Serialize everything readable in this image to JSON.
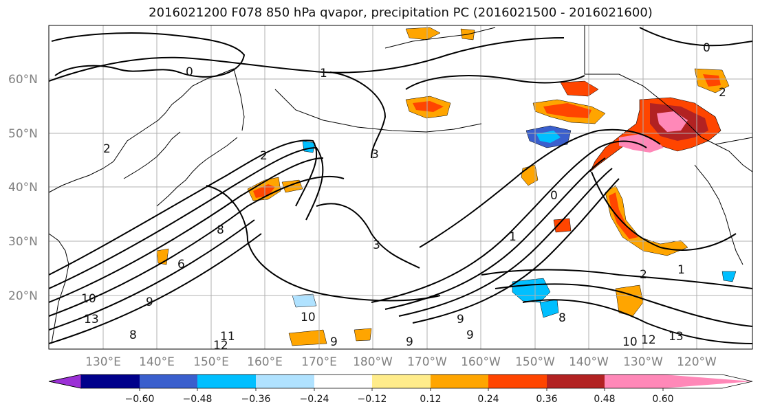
{
  "title": "2016021200 F078 850 hPa qvapor, precipitation PC (2016021500 - 2016021600)",
  "lat_labels": [
    "60°N",
    "50°N",
    "40°N",
    "30°N",
    "20°N"
  ],
  "lon_labels": [
    "130°E",
    "140°E",
    "150°E",
    "160°E",
    "170°E",
    "180°W",
    "170°W",
    "160°W",
    "150°W",
    "140°W",
    "130°W",
    "120°W"
  ],
  "contour_labels": [
    "0",
    "1",
    "2",
    "3",
    "2",
    "6",
    "8",
    "9",
    "10",
    "11",
    "12",
    "13",
    "10",
    "9",
    "8",
    "9",
    "3",
    "2",
    "1",
    "0",
    "1",
    "2",
    "8",
    "0",
    "10",
    "12",
    "13",
    "9",
    "9"
  ],
  "colorbar": {
    "ticks": [
      "−0.60",
      "−0.48",
      "−0.36",
      "−0.24",
      "−0.12",
      "0.12",
      "0.24",
      "0.36",
      "0.48",
      "0.60"
    ],
    "colors": [
      "#9b30d6",
      "#00008b",
      "#3a5fcd",
      "#00bfff",
      "#b0e2ff",
      "#ffffff",
      "#ffec8b",
      "#ffa500",
      "#ff4500",
      "#b22222",
      "#ff88b8",
      "#ffffff"
    ]
  }
}
